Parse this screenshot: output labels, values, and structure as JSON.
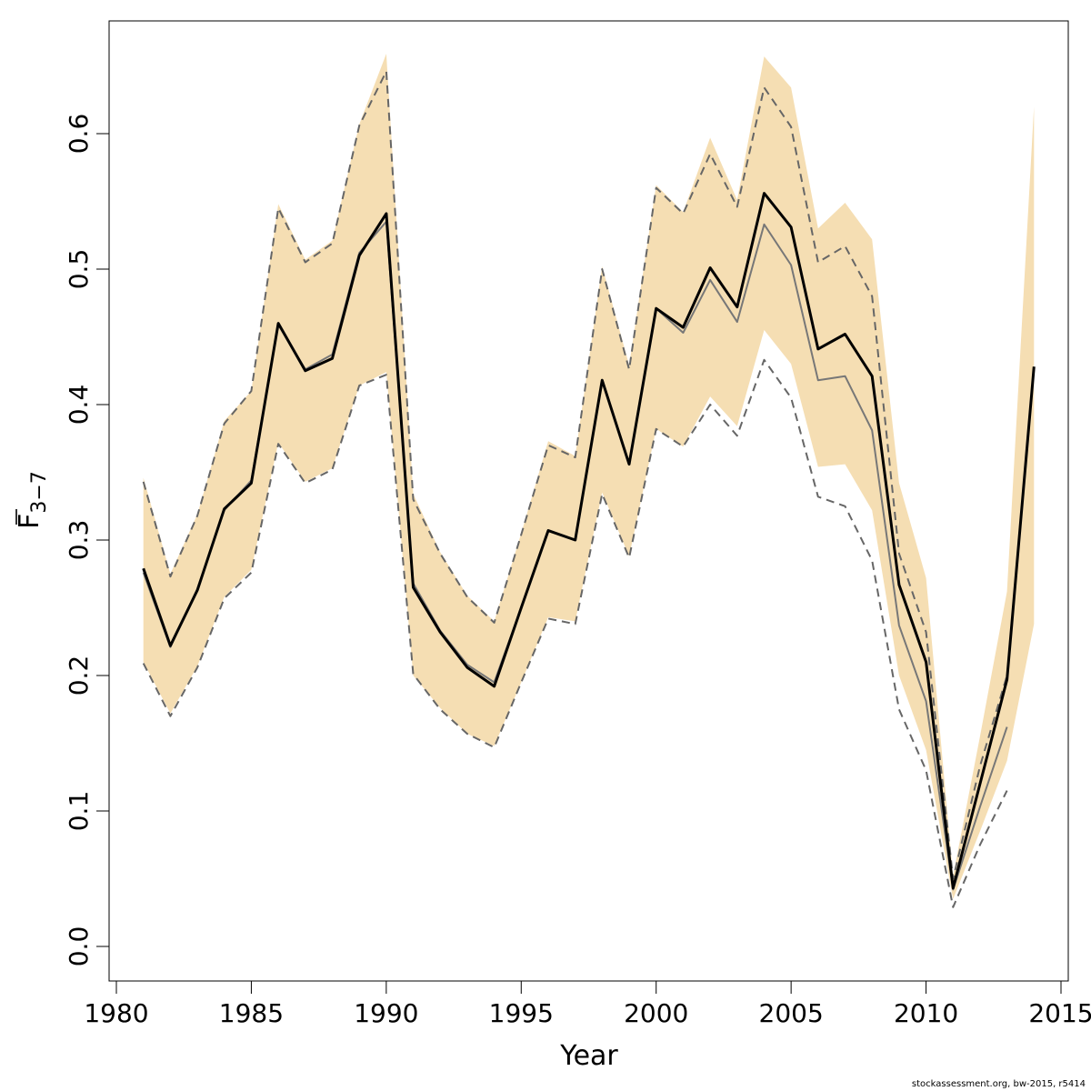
{
  "chart_data": {
    "type": "line",
    "xlabel": "Year",
    "ylabel": {
      "main": "F",
      "sub": "3−7"
    },
    "xlim": [
      1980,
      2015
    ],
    "ylim": [
      0.0,
      0.6
    ],
    "xticks": [
      1980,
      1985,
      1990,
      1995,
      2000,
      2005,
      2010,
      2015
    ],
    "yticks": [
      0.0,
      0.1,
      0.2,
      0.3,
      0.4,
      0.5,
      0.6
    ],
    "xtick_labels": [
      "1980",
      "1985",
      "1990",
      "1995",
      "2000",
      "2005",
      "2010",
      "2015"
    ],
    "ytick_labels": [
      "0.0",
      "0.1",
      "0.2",
      "0.3",
      "0.4",
      "0.5",
      "0.6"
    ],
    "grid": false,
    "legend": "none",
    "colors": {
      "band": "#f5deb3",
      "current": "#000000",
      "previous": "#777777",
      "previous_ci": "#666666"
    },
    "series": [
      {
        "kind": "band",
        "x": [
          1981,
          1982,
          1983,
          1984,
          1985,
          1986,
          1987,
          1988,
          1989,
          1990,
          1991,
          1992,
          1993,
          1994,
          1995,
          1996,
          1997,
          1998,
          1999,
          2000,
          2001,
          2002,
          2003,
          2004,
          2005,
          2006,
          2007,
          2008,
          2009,
          2010,
          2011,
          2012,
          2013,
          2014
        ],
        "lower": [
          0.21,
          0.172,
          0.207,
          0.258,
          0.278,
          0.372,
          0.343,
          0.353,
          0.414,
          0.424,
          0.2,
          0.176,
          0.157,
          0.148,
          0.195,
          0.243,
          0.24,
          0.335,
          0.288,
          0.382,
          0.369,
          0.406,
          0.384,
          0.455,
          0.43,
          0.354,
          0.356,
          0.322,
          0.2,
          0.145,
          0.035,
          0.085,
          0.137,
          0.238
        ],
        "upper": [
          0.346,
          0.275,
          0.319,
          0.388,
          0.41,
          0.548,
          0.507,
          0.521,
          0.607,
          0.659,
          0.334,
          0.291,
          0.259,
          0.24,
          0.305,
          0.373,
          0.362,
          0.502,
          0.429,
          0.562,
          0.542,
          0.597,
          0.551,
          0.657,
          0.634,
          0.53,
          0.549,
          0.522,
          0.342,
          0.272,
          0.052,
          0.155,
          0.262,
          0.62
        ]
      },
      {
        "kind": "line-current",
        "x": [
          1981,
          1982,
          1983,
          1984,
          1985,
          1986,
          1987,
          1988,
          1989,
          1990,
          1991,
          1992,
          1993,
          1994,
          1995,
          1996,
          1997,
          1998,
          1999,
          2000,
          2001,
          2002,
          2003,
          2004,
          2005,
          2006,
          2007,
          2008,
          2009,
          2010,
          2011,
          2012,
          2013,
          2014
        ],
        "values": [
          0.279,
          0.222,
          0.263,
          0.323,
          0.342,
          0.46,
          0.425,
          0.434,
          0.51,
          0.541,
          0.265,
          0.232,
          0.206,
          0.192,
          0.25,
          0.307,
          0.3,
          0.418,
          0.356,
          0.471,
          0.457,
          0.501,
          0.472,
          0.556,
          0.531,
          0.441,
          0.452,
          0.421,
          0.267,
          0.21,
          0.043,
          0.12,
          0.197,
          0.428
        ]
      },
      {
        "kind": "line-previous",
        "x": [
          1981,
          1982,
          1983,
          1984,
          1985,
          1986,
          1987,
          1988,
          1989,
          1990,
          1991,
          1992,
          1993,
          1994,
          1995,
          1996,
          1997,
          1998,
          1999,
          2000,
          2001,
          2002,
          2003,
          2004,
          2005,
          2006,
          2007,
          2008,
          2009,
          2010,
          2011,
          2012,
          2013
        ],
        "values": [
          0.276,
          0.221,
          0.264,
          0.322,
          0.344,
          0.459,
          0.426,
          0.437,
          0.512,
          0.535,
          0.268,
          0.233,
          0.208,
          0.195,
          0.25,
          0.307,
          0.3,
          0.418,
          0.356,
          0.471,
          0.453,
          0.492,
          0.461,
          0.533,
          0.503,
          0.418,
          0.421,
          0.381,
          0.237,
          0.181,
          0.042,
          0.103,
          0.162
        ]
      },
      {
        "kind": "dashed-upper",
        "x": [
          1981,
          1982,
          1983,
          1984,
          1985,
          1986,
          1987,
          1988,
          1989,
          1990,
          1991,
          1992,
          1993,
          1994,
          1995,
          1996,
          1997,
          1998,
          1999,
          2000,
          2001,
          2002,
          2003,
          2004,
          2005,
          2006,
          2007,
          2008,
          2009,
          2010,
          2011,
          2012,
          2013
        ],
        "values": [
          0.343,
          0.273,
          0.318,
          0.386,
          0.41,
          0.545,
          0.505,
          0.519,
          0.606,
          0.646,
          0.33,
          0.29,
          0.258,
          0.239,
          0.304,
          0.37,
          0.361,
          0.5,
          0.426,
          0.56,
          0.541,
          0.585,
          0.546,
          0.634,
          0.605,
          0.505,
          0.517,
          0.48,
          0.29,
          0.232,
          0.05,
          0.133,
          0.2
        ]
      },
      {
        "kind": "dashed-lower",
        "x": [
          1981,
          1982,
          1983,
          1984,
          1985,
          1986,
          1987,
          1988,
          1989,
          1990,
          1991,
          1992,
          1993,
          1994,
          1995,
          1996,
          1997,
          1998,
          1999,
          2000,
          2001,
          2002,
          2003,
          2004,
          2005,
          2006,
          2007,
          2008,
          2009,
          2010,
          2011,
          2012,
          2013
        ],
        "values": [
          0.209,
          0.17,
          0.206,
          0.257,
          0.276,
          0.371,
          0.342,
          0.352,
          0.414,
          0.422,
          0.201,
          0.175,
          0.157,
          0.147,
          0.195,
          0.242,
          0.238,
          0.334,
          0.287,
          0.382,
          0.369,
          0.4,
          0.377,
          0.433,
          0.405,
          0.332,
          0.325,
          0.285,
          0.175,
          0.13,
          0.029,
          0.075,
          0.115
        ]
      }
    ]
  },
  "footer": "stockassessment.org, bw-2015, r5414"
}
